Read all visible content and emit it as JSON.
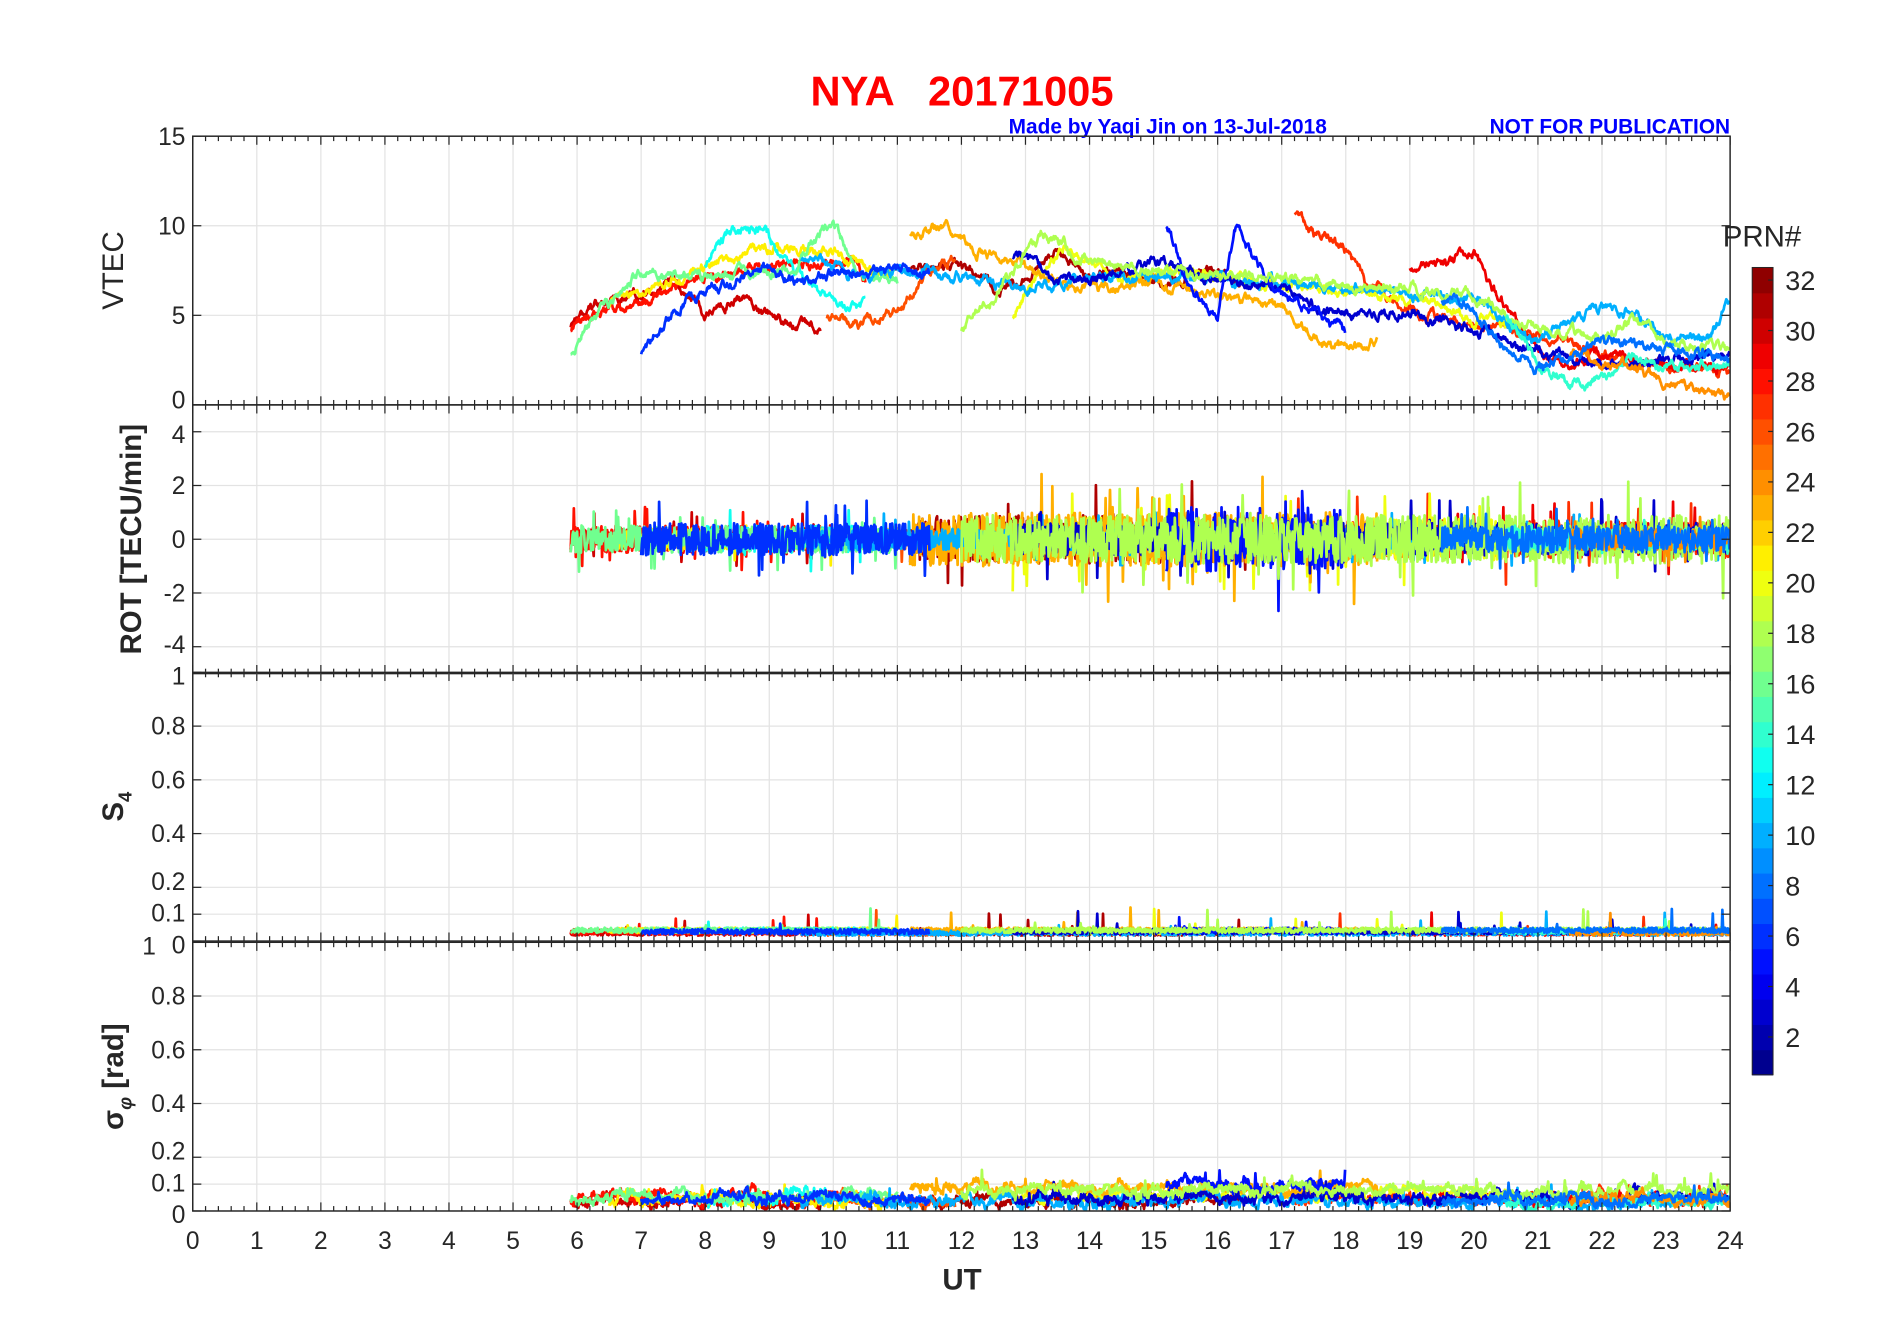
{
  "chart_data": {
    "type": "line",
    "title": "NYA   20171005",
    "subtitle": "Made by Yaqi Jin on 13-Jul-2018",
    "notice": "NOT FOR PUBLICATION",
    "xlabel": "UT",
    "xlim": [
      0,
      24
    ],
    "xticks": [
      0,
      1,
      2,
      3,
      4,
      5,
      6,
      7,
      8,
      9,
      10,
      11,
      12,
      13,
      14,
      15,
      16,
      17,
      18,
      19,
      20,
      21,
      22,
      23,
      24
    ],
    "panels": [
      {
        "key": "vtec",
        "ylabel": "VTEC",
        "ylim": [
          0,
          15
        ],
        "yticks": [
          0,
          5,
          10,
          15
        ]
      },
      {
        "key": "rot",
        "ylabel": "ROT [TECU/min]",
        "ylim": [
          -5,
          5
        ],
        "yticks": [
          -4,
          -2,
          0,
          2,
          4
        ]
      },
      {
        "key": "s4",
        "ylabel": "S",
        "ylabel_sub": "4",
        "ylim": [
          0,
          1
        ],
        "yticks": [
          0,
          0.1,
          0.2,
          0.4,
          0.6,
          0.8,
          1
        ]
      },
      {
        "key": "sigma",
        "ylabel": "σ",
        "ylabel_sub": "φ",
        "ylabel_suffix": " [rad]",
        "ylim": [
          0,
          1
        ],
        "yticks": [
          0,
          0.1,
          0.2,
          0.4,
          0.6,
          0.8,
          1
        ]
      }
    ],
    "colorbar": {
      "title": "PRN#",
      "range": [
        1,
        32
      ],
      "ticks": [
        2,
        4,
        6,
        8,
        10,
        12,
        14,
        16,
        18,
        20,
        22,
        24,
        26,
        28,
        30,
        32
      ],
      "colormap": "jet"
    },
    "series": [
      {
        "prn": 30,
        "vtec": [
          [
            5.9,
            4.5
          ],
          [
            6.3,
            5.6
          ],
          [
            6.9,
            6.2
          ],
          [
            7.5,
            6.8
          ],
          [
            8,
            5
          ],
          [
            8.5,
            6
          ],
          [
            9,
            4.8
          ],
          [
            9.5,
            4.5
          ],
          [
            9.8,
            4.1
          ]
        ],
        "rot_amp": 0.4,
        "s4": 0.03,
        "sigma": 0.06
      },
      {
        "prn": 31,
        "vtec": [
          [
            11.2,
            7.6
          ],
          [
            12,
            7.8
          ],
          [
            12.6,
            6.4
          ],
          [
            13,
            7
          ],
          [
            13.5,
            8.8
          ],
          [
            14,
            7
          ],
          [
            14.5,
            7.5
          ],
          [
            15,
            6.8
          ],
          [
            15.8,
            7.5
          ],
          [
            16.5,
            6.8
          ]
        ],
        "rot_amp": 0.9,
        "s4": 0.03,
        "sigma": 0.05
      },
      {
        "prn": 28,
        "vtec": [
          [
            5.9,
            4.3
          ],
          [
            6.5,
            5.2
          ],
          [
            7,
            5.8
          ],
          [
            7.5,
            6.5
          ],
          [
            8,
            7
          ],
          [
            8.6,
            7.7
          ],
          [
            9.5,
            7.8
          ],
          [
            10.3,
            8.2
          ],
          [
            10.5,
            7
          ]
        ],
        "rot_amp": 0.5,
        "s4": 0.035,
        "sigma": 0.07
      },
      {
        "prn": 26,
        "vtec": [
          [
            9.9,
            5
          ],
          [
            10.4,
            4.6
          ],
          [
            11,
            5.2
          ],
          [
            11.5,
            7.5
          ],
          [
            11.9,
            8
          ]
        ],
        "rot_amp": 0.4,
        "s4": 0.03,
        "sigma": 0.06
      },
      {
        "prn": 27,
        "vtec": [
          [
            17.2,
            10.8
          ],
          [
            17.5,
            9.5
          ],
          [
            17.9,
            9
          ],
          [
            18.3,
            7
          ],
          [
            18.7,
            6
          ],
          [
            19.2,
            5
          ],
          [
            20,
            4.5
          ],
          [
            20.5,
            4.2
          ],
          [
            21,
            3.8
          ],
          [
            21.5,
            3.5
          ],
          [
            22,
            2.8
          ],
          [
            23,
            2.2
          ],
          [
            24,
            1.8
          ]
        ],
        "rot_amp": 0.7,
        "s4": 0.035,
        "sigma": 0.07
      },
      {
        "prn": 29,
        "vtec": [
          [
            19,
            7.8
          ],
          [
            19.5,
            8
          ],
          [
            20,
            8.3
          ],
          [
            20.5,
            5.5
          ],
          [
            21,
            3
          ],
          [
            21.5,
            2.2
          ],
          [
            22,
            2.8
          ],
          [
            22.5,
            2.5
          ],
          [
            23,
            2
          ],
          [
            24,
            2.2
          ]
        ],
        "rot_amp": 0.6,
        "s4": 0.03,
        "sigma": 0.06
      },
      {
        "prn": 21,
        "vtec": [
          [
            6.5,
            5.8
          ],
          [
            7,
            6.3
          ],
          [
            7.5,
            7
          ],
          [
            8,
            7.7
          ],
          [
            8.5,
            8.3
          ],
          [
            9,
            8.7
          ],
          [
            9.5,
            8.8
          ],
          [
            10,
            8.5
          ],
          [
            10.5,
            7.5
          ],
          [
            11,
            7.2
          ]
        ],
        "rot_amp": 0.4,
        "s4": 0.04,
        "sigma": 0.05
      },
      {
        "prn": 20,
        "vtec": [
          [
            12.8,
            5
          ],
          [
            13.2,
            7.5
          ],
          [
            13.6,
            8.8
          ],
          [
            14,
            8
          ],
          [
            14.5,
            7
          ],
          [
            15,
            7.5
          ],
          [
            19,
            6
          ],
          [
            19.5,
            5.5
          ],
          [
            20,
            4.8
          ],
          [
            20.5,
            4.5
          ]
        ],
        "rot_amp": 0.8,
        "s4": 0.035,
        "sigma": 0.09
      },
      {
        "prn": 13,
        "vtec": [
          [
            8,
            8
          ],
          [
            8.4,
            9.5
          ],
          [
            8.9,
            10
          ],
          [
            9.2,
            8
          ],
          [
            9.5,
            7
          ],
          [
            10,
            5.8
          ],
          [
            10.5,
            5.5
          ]
        ],
        "rot_amp": 0.5,
        "s4": 0.04,
        "sigma": 0.07
      },
      {
        "prn": 16,
        "vtec": [
          [
            5.9,
            3
          ],
          [
            6.2,
            4.5
          ],
          [
            7,
            7.5
          ],
          [
            8,
            7.1
          ],
          [
            9.3,
            7.5
          ],
          [
            10,
            10.3
          ],
          [
            10.4,
            7.2
          ],
          [
            11,
            7
          ]
        ],
        "rot_amp": 0.5,
        "s4": 0.04,
        "sigma": 0.08
      },
      {
        "prn": 23,
        "vtec": [
          [
            11.2,
            9.6
          ],
          [
            11.8,
            10
          ],
          [
            12.2,
            8.7
          ],
          [
            13,
            7.6
          ],
          [
            14,
            6.5
          ],
          [
            15,
            6.9
          ],
          [
            16,
            6.1
          ],
          [
            17,
            5.6
          ],
          [
            17.7,
            3.2
          ],
          [
            18,
            3
          ],
          [
            18.5,
            3.6
          ]
        ],
        "rot_amp": 1.0,
        "s4": 0.04,
        "sigma": 0.12
      },
      {
        "prn": 10,
        "vtec": [
          [
            9.5,
            8.2
          ],
          [
            10.4,
            7.2
          ],
          [
            11,
            7.5
          ],
          [
            12,
            7.1
          ],
          [
            13,
            6.6
          ],
          [
            14,
            7
          ],
          [
            15,
            7.2
          ],
          [
            20,
            6
          ],
          [
            21,
            3.5
          ],
          [
            22,
            5.5
          ],
          [
            22.5,
            5.2
          ],
          [
            23,
            3.9
          ],
          [
            23.7,
            3.8
          ],
          [
            24,
            5.8
          ]
        ],
        "rot_amp": 0.4,
        "s4": 0.03,
        "sigma": 0.05
      },
      {
        "prn": 6,
        "vtec": [
          [
            7,
            3
          ],
          [
            7.5,
            5
          ],
          [
            8,
            6.5
          ],
          [
            9,
            7.5
          ],
          [
            9.5,
            7
          ],
          [
            10,
            7.2
          ],
          [
            11,
            7.6
          ],
          [
            11.5,
            7.4
          ]
        ],
        "rot_amp": 0.6,
        "s4": 0.035,
        "sigma": 0.07
      },
      {
        "prn": 3,
        "vtec": [
          [
            12.8,
            8.4
          ],
          [
            13.5,
            7
          ],
          [
            14,
            6.8
          ],
          [
            15,
            8
          ],
          [
            16,
            7
          ],
          [
            17,
            6.6
          ],
          [
            17.5,
            5.5
          ],
          [
            18,
            5.2
          ],
          [
            19,
            5
          ],
          [
            20,
            4.2
          ],
          [
            21,
            3
          ],
          [
            22,
            2.2
          ],
          [
            23,
            2.5
          ],
          [
            24,
            2.8
          ]
        ],
        "rot_amp": 0.6,
        "s4": 0.035,
        "sigma": 0.07
      },
      {
        "prn": 5,
        "vtec": [
          [
            15.2,
            10
          ],
          [
            15.5,
            7
          ],
          [
            15.8,
            5.5
          ],
          [
            16,
            5
          ],
          [
            16.3,
            10
          ],
          [
            16.6,
            8
          ],
          [
            17,
            6
          ],
          [
            17.4,
            5.5
          ],
          [
            18,
            4
          ]
        ],
        "rot_amp": 1.2,
        "s4": 0.04,
        "sigma": 0.15
      },
      {
        "prn": 18,
        "vtec": [
          [
            12,
            4.3
          ],
          [
            12.5,
            5.8
          ],
          [
            13,
            8.5
          ],
          [
            13.3,
            9.6
          ],
          [
            14,
            8
          ],
          [
            15,
            7.5
          ],
          [
            19,
            6.5
          ],
          [
            20,
            6
          ],
          [
            21,
            4.2
          ],
          [
            22,
            3.8
          ],
          [
            22.5,
            4.8
          ],
          [
            23,
            3.5
          ],
          [
            24,
            3
          ]
        ],
        "rot_amp": 0.9,
        "s4": 0.04,
        "sigma": 0.11
      },
      {
        "prn": 14,
        "vtec": [
          [
            20.5,
            5
          ],
          [
            20.8,
            3.5
          ],
          [
            21,
            2.2
          ],
          [
            21.5,
            1.2
          ],
          [
            22,
            1.5
          ],
          [
            22.5,
            2.8
          ],
          [
            23,
            2
          ],
          [
            24,
            2.5
          ]
        ],
        "rot_amp": 0.4,
        "s4": 0.035,
        "sigma": 0.05
      },
      {
        "prn": 24,
        "vtec": [
          [
            21.5,
            3
          ],
          [
            22,
            2.4
          ],
          [
            22.5,
            2
          ],
          [
            23,
            1.3
          ],
          [
            23.5,
            0.8
          ],
          [
            24,
            0.3
          ]
        ],
        "rot_amp": 0.4,
        "s4": 0.03,
        "sigma": 0.07
      },
      {
        "prn": 8,
        "vtec": [
          [
            19.5,
            6
          ],
          [
            20,
            5.2
          ],
          [
            20.5,
            3.2
          ],
          [
            21,
            2.1
          ],
          [
            21.5,
            2.8
          ],
          [
            22,
            3.5
          ],
          [
            23,
            3.2
          ],
          [
            24,
            2.5
          ]
        ],
        "rot_amp": 0.5,
        "s4": 0.04,
        "sigma": 0.06
      }
    ]
  }
}
